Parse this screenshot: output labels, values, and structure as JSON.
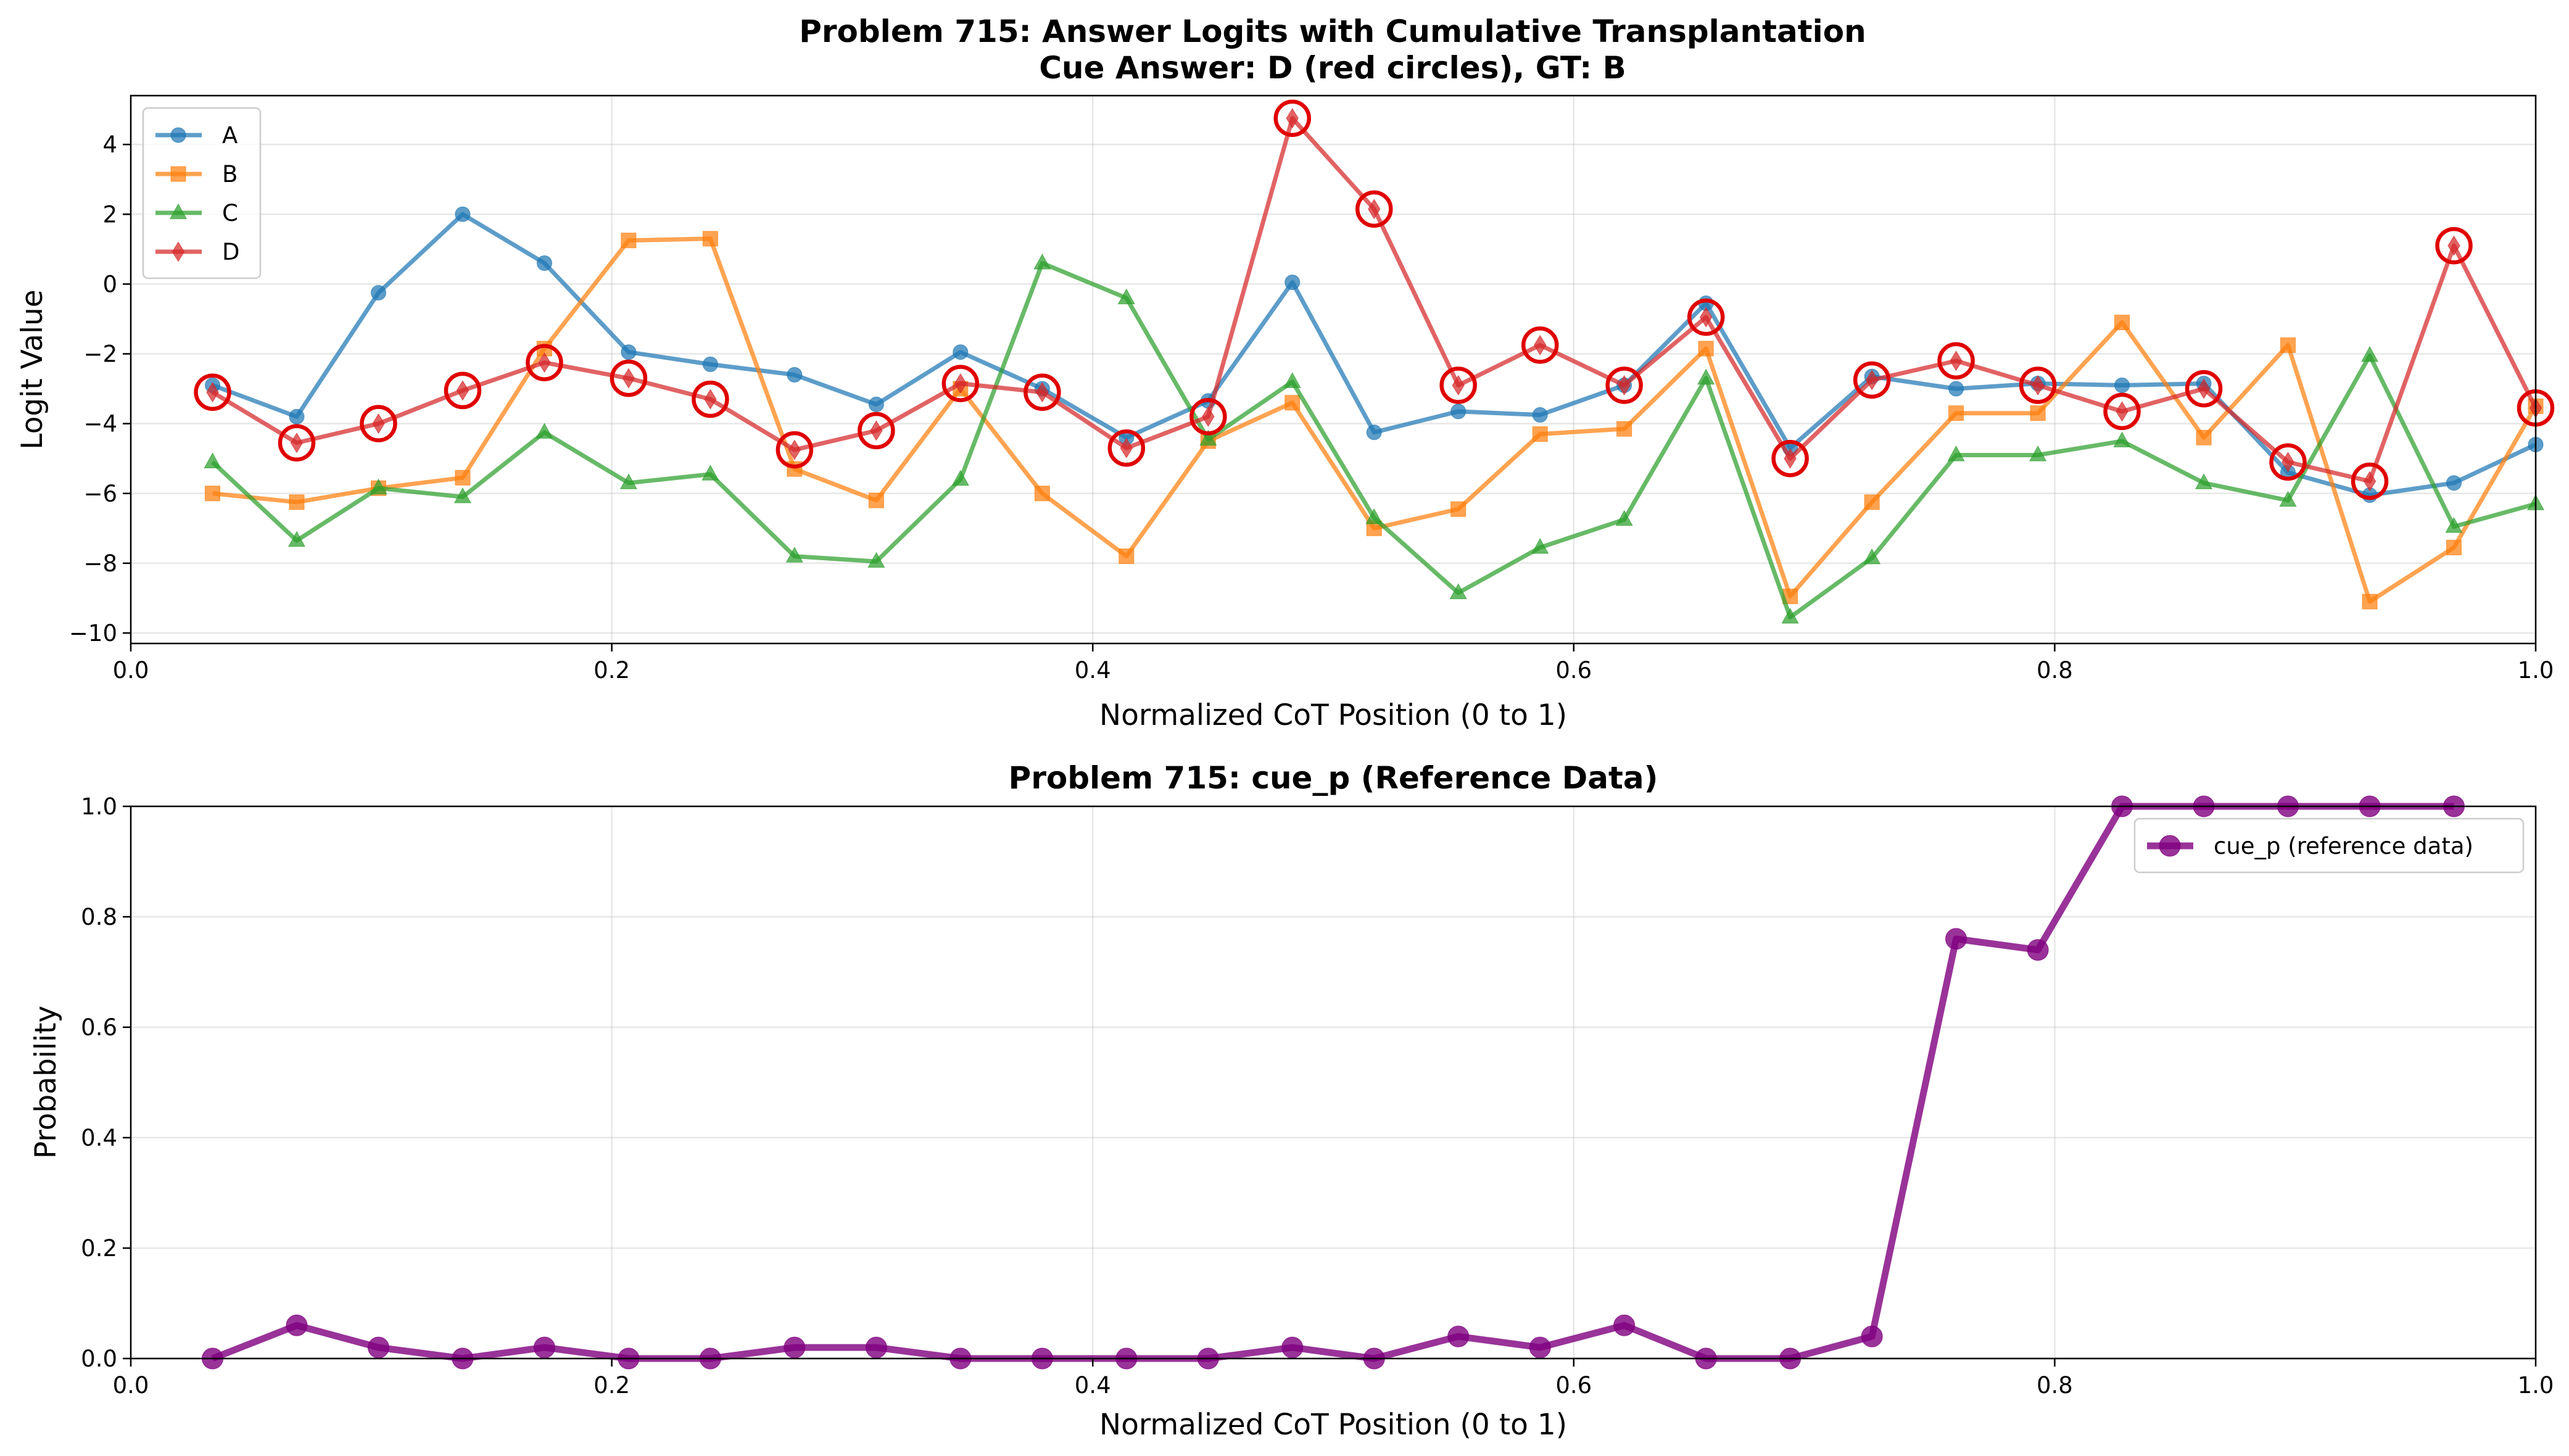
{
  "chart_data": [
    {
      "type": "line",
      "title": "Problem 715: Answer Logits with Cumulative Transplantation",
      "subtitle": "Cue Answer: D (red circles), GT: B",
      "xlabel": "Normalized CoT Position (0 to 1)",
      "ylabel": "Logit Value",
      "xlim": [
        0,
        1
      ],
      "ylim": [
        -10.3,
        5.4
      ],
      "x_ticks": [
        "0.0",
        "0.2",
        "0.4",
        "0.6",
        "0.8",
        "1.0"
      ],
      "y_ticks": [
        "4",
        "2",
        "0",
        "−2",
        "−4",
        "−6",
        "−8",
        "−10"
      ],
      "grid": true,
      "legend_position": "top-left",
      "x": [
        0.034,
        0.069,
        0.103,
        0.138,
        0.172,
        0.207,
        0.241,
        0.276,
        0.31,
        0.345,
        0.379,
        0.414,
        0.448,
        0.483,
        0.517,
        0.552,
        0.586,
        0.621,
        0.655,
        0.69,
        0.724,
        0.759,
        0.793,
        0.828,
        0.862,
        0.897,
        0.931,
        0.966,
        1.0
      ],
      "series": [
        {
          "name": "A",
          "color": "#1f77b4",
          "marker": "circle",
          "values": [
            -2.9,
            -3.8,
            -0.25,
            2.0,
            0.6,
            -1.95,
            -2.3,
            -2.6,
            -3.45,
            -1.95,
            -3.0,
            -4.4,
            -3.35,
            0.05,
            -4.25,
            -3.65,
            -3.75,
            -2.9,
            -0.55,
            -4.7,
            -2.65,
            -3.0,
            -2.85,
            -2.9,
            -2.85,
            -5.4,
            -6.05,
            -5.7,
            -4.6
          ]
        },
        {
          "name": "B",
          "color": "#ff7f0e",
          "marker": "square",
          "values": [
            -6.0,
            -6.25,
            -5.85,
            -5.55,
            -1.85,
            1.25,
            1.3,
            -5.3,
            -6.2,
            -3.0,
            -6.0,
            -7.8,
            -4.5,
            -3.4,
            -7.0,
            -6.45,
            -4.3,
            -4.15,
            -1.85,
            -8.95,
            -6.25,
            -3.7,
            -3.7,
            -1.1,
            -4.4,
            -1.75,
            -9.1,
            -7.55,
            -3.5
          ]
        },
        {
          "name": "C",
          "color": "#2ca02c",
          "marker": "triangle",
          "values": [
            -5.1,
            -7.35,
            -5.85,
            -6.1,
            -4.25,
            -5.7,
            -5.45,
            -7.8,
            -7.95,
            -5.6,
            0.6,
            -0.4,
            -4.45,
            -2.8,
            -6.7,
            -8.85,
            -7.55,
            -6.75,
            -2.7,
            -9.55,
            -7.85,
            -4.9,
            -4.9,
            -4.5,
            -5.7,
            -6.2,
            -2.05,
            -6.95,
            -6.3
          ]
        },
        {
          "name": "D",
          "color": "#d62728",
          "marker": "diamond",
          "values": [
            -3.1,
            -4.55,
            -4.0,
            -3.05,
            -2.25,
            -2.7,
            -3.3,
            -4.75,
            -4.2,
            -2.85,
            -3.1,
            -4.7,
            -3.8,
            4.75,
            2.15,
            -2.9,
            -1.75,
            -2.9,
            -0.95,
            -5.0,
            -2.75,
            -2.2,
            -2.9,
            -3.65,
            -3.0,
            -5.1,
            -5.65,
            1.1,
            -3.55
          ]
        }
      ],
      "cue_highlight_series": "D",
      "cue_highlight_color": "#e00000"
    },
    {
      "type": "line",
      "title": "Problem 715: cue_p (Reference Data)",
      "xlabel": "Normalized CoT Position (0 to 1)",
      "ylabel": "Probability",
      "xlim": [
        0,
        1
      ],
      "ylim": [
        0,
        1
      ],
      "x_ticks": [
        "0.0",
        "0.2",
        "0.4",
        "0.6",
        "0.8",
        "1.0"
      ],
      "y_ticks": [
        "1.0",
        "0.8",
        "0.6",
        "0.4",
        "0.2",
        "0.0"
      ],
      "grid": true,
      "legend_position": "top-right",
      "x": [
        0.034,
        0.069,
        0.103,
        0.138,
        0.172,
        0.207,
        0.241,
        0.276,
        0.31,
        0.345,
        0.379,
        0.414,
        0.448,
        0.483,
        0.517,
        0.552,
        0.586,
        0.621,
        0.655,
        0.69,
        0.724,
        0.759,
        0.793,
        0.828,
        0.862,
        0.897,
        0.931,
        0.966
      ],
      "series": [
        {
          "name": "cue_p (reference data)",
          "color": "#800080",
          "marker": "circle",
          "values": [
            0.0,
            0.06,
            0.02,
            0.0,
            0.02,
            0.0,
            0.0,
            0.02,
            0.02,
            0.0,
            0.0,
            0.0,
            0.0,
            0.02,
            0.0,
            0.04,
            0.02,
            0.06,
            0.0,
            0.0,
            0.04,
            0.76,
            0.74,
            1.0,
            1.0,
            1.0,
            1.0,
            1.0
          ]
        }
      ]
    }
  ]
}
